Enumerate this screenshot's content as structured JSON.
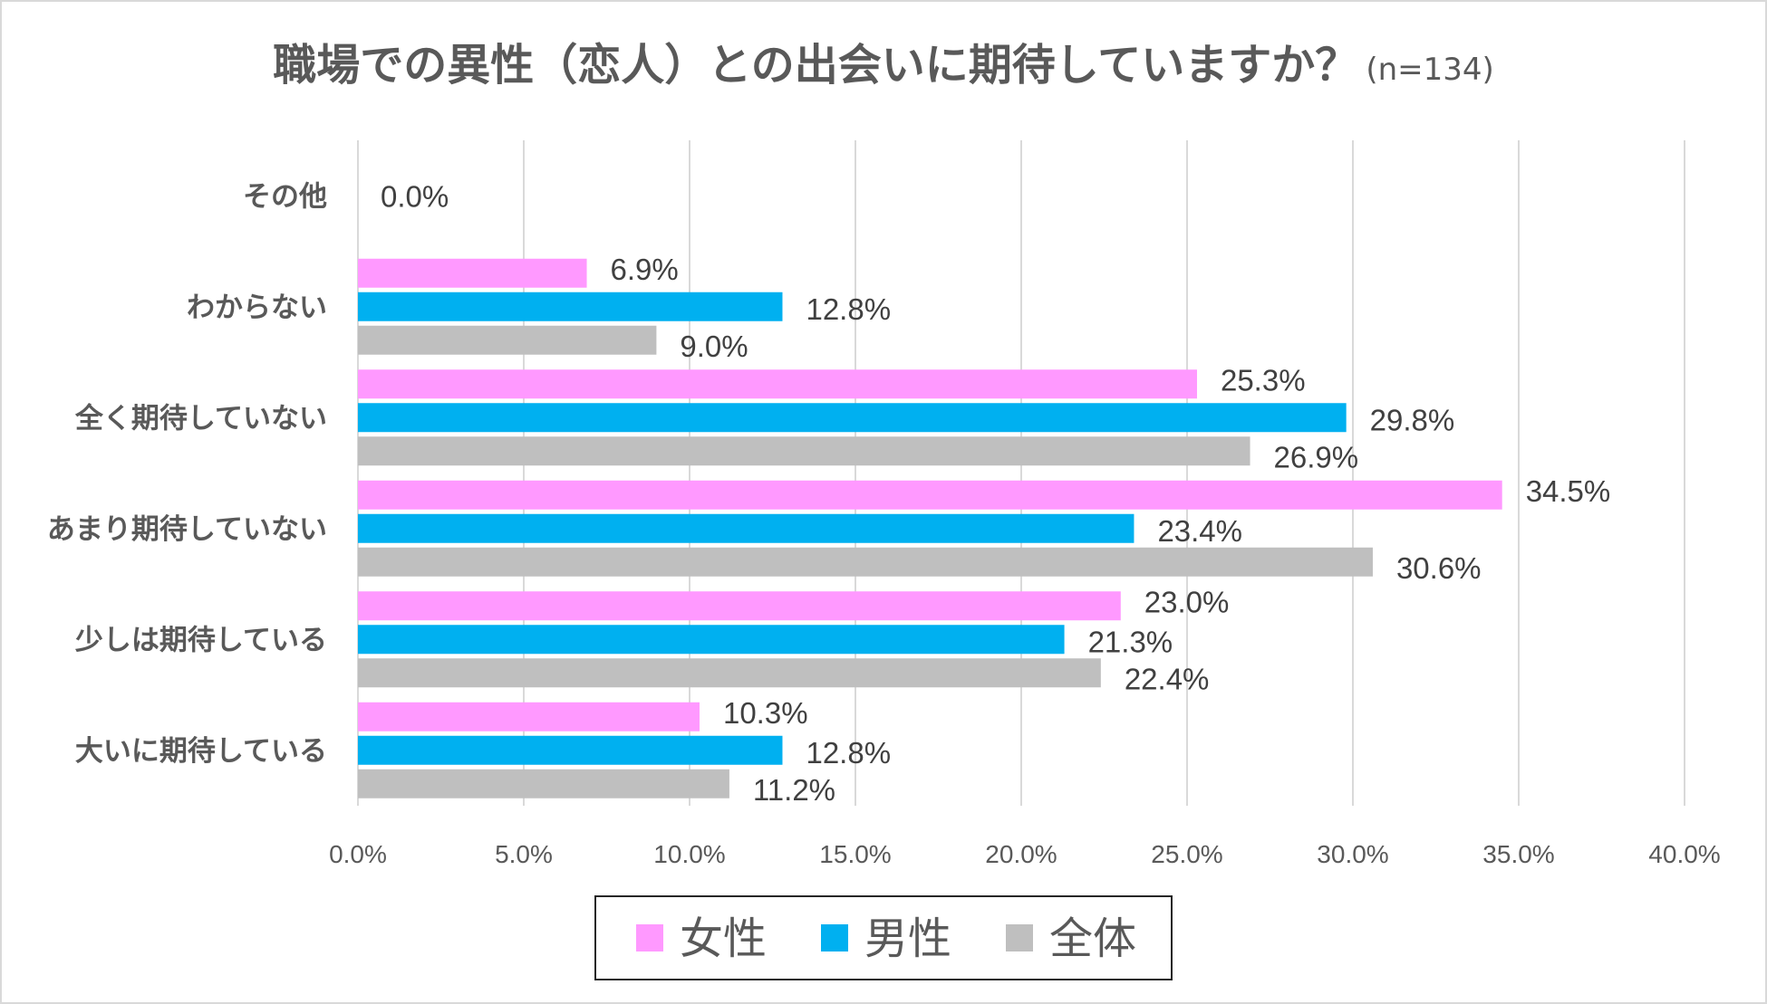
{
  "chart_data": {
    "type": "bar",
    "orientation": "horizontal",
    "title": "職場での異性（恋人）との出会いに期待していますか？",
    "subtitle": "(n=134)",
    "categories": [
      "その他",
      "わからない",
      "全く期待していない",
      "あまり期待していない",
      "少しは期待している",
      "大いに期待している"
    ],
    "series": [
      {
        "name": "女性",
        "color": "#ff99ff",
        "values": [
          0.0,
          6.9,
          25.3,
          34.5,
          23.0,
          10.3
        ]
      },
      {
        "name": "男性",
        "color": "#00b0f0",
        "values": [
          0.0,
          12.8,
          29.8,
          23.4,
          21.3,
          12.8
        ]
      },
      {
        "name": "全体",
        "color": "#bfbfbf",
        "values": [
          0.0,
          9.0,
          26.9,
          30.6,
          22.4,
          11.2
        ]
      }
    ],
    "data_labels_shown": {
      "その他": "0.0%"
    },
    "xlim": [
      0,
      40
    ],
    "xticks": [
      "0.0%",
      "5.0%",
      "10.0%",
      "15.0%",
      "20.0%",
      "25.0%",
      "30.0%",
      "35.0%",
      "40.0%"
    ],
    "grid": "vertical",
    "legend": "bottom"
  }
}
